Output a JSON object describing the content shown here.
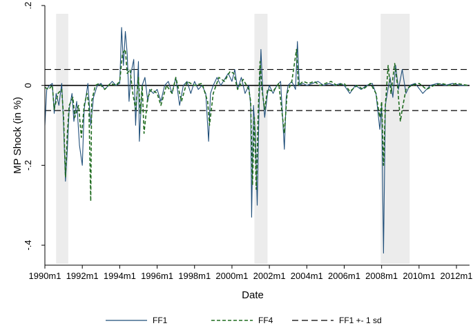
{
  "chart_data": {
    "type": "line",
    "xlabel": "Date",
    "ylabel": "MP Shock (in %)",
    "xlim": [
      1990.0,
      2012.7
    ],
    "ylim": [
      -0.45,
      0.2
    ],
    "x_ticks": [
      {
        "x": 1990,
        "label": "1990m1"
      },
      {
        "x": 1992,
        "label": "1992m1"
      },
      {
        "x": 1994,
        "label": "1994m1"
      },
      {
        "x": 1996,
        "label": "1996m1"
      },
      {
        "x": 1998,
        "label": "1998m1"
      },
      {
        "x": 2000,
        "label": "2000m1"
      },
      {
        "x": 2002,
        "label": "2002m1"
      },
      {
        "x": 2004,
        "label": "2004m1"
      },
      {
        "x": 2006,
        "label": "2006m1"
      },
      {
        "x": 2008,
        "label": "2008m1"
      },
      {
        "x": 2010,
        "label": "2010m1"
      },
      {
        "x": 2012,
        "label": "2012m1"
      }
    ],
    "y_ticks": [
      {
        "y": 0.2,
        "label": ".2"
      },
      {
        "y": 0,
        "label": "0"
      },
      {
        "y": -0.2,
        "label": "-.2"
      },
      {
        "y": -0.4,
        "label": "-.4"
      }
    ],
    "recessions": [
      [
        1990.6,
        1991.25
      ],
      [
        2001.2,
        2001.9
      ],
      [
        2007.95,
        2009.5
      ]
    ],
    "sd_bands": [
      0.04,
      -0.063
    ],
    "grid": false,
    "legend_position": "bottom",
    "series": [
      {
        "name": "FF1",
        "color": "#1f4e79",
        "dash": "solid",
        "points": [
          [
            1990.0,
            -0.1
          ],
          [
            1990.1,
            -0.01
          ],
          [
            1990.25,
            0.0
          ],
          [
            1990.4,
            0.005
          ],
          [
            1990.5,
            -0.07
          ],
          [
            1990.6,
            -0.02
          ],
          [
            1990.75,
            -0.05
          ],
          [
            1990.9,
            0.005
          ],
          [
            1991.0,
            -0.1
          ],
          [
            1991.1,
            -0.24
          ],
          [
            1991.2,
            -0.16
          ],
          [
            1991.3,
            -0.06
          ],
          [
            1991.45,
            -0.02
          ],
          [
            1991.55,
            -0.09
          ],
          [
            1991.7,
            -0.04
          ],
          [
            1991.85,
            -0.15
          ],
          [
            1992.0,
            -0.2
          ],
          [
            1992.1,
            -0.06
          ],
          [
            1992.3,
            0.005
          ],
          [
            1992.45,
            -0.1
          ],
          [
            1992.6,
            -0.03
          ],
          [
            1992.8,
            0.0
          ],
          [
            1993.0,
            0.005
          ],
          [
            1993.2,
            -0.01
          ],
          [
            1993.4,
            0.0
          ],
          [
            1993.6,
            0.01
          ],
          [
            1993.8,
            0.0
          ],
          [
            1994.0,
            0.005
          ],
          [
            1994.1,
            0.145
          ],
          [
            1994.2,
            0.05
          ],
          [
            1994.3,
            0.135
          ],
          [
            1994.4,
            0.08
          ],
          [
            1994.5,
            -0.04
          ],
          [
            1994.6,
            0.03
          ],
          [
            1994.75,
            0.065
          ],
          [
            1994.85,
            -0.1
          ],
          [
            1995.0,
            0.06
          ],
          [
            1995.05,
            -0.14
          ],
          [
            1995.2,
            0.0
          ],
          [
            1995.35,
            0.02
          ],
          [
            1995.5,
            -0.04
          ],
          [
            1995.6,
            -0.01
          ],
          [
            1995.8,
            -0.02
          ],
          [
            1996.0,
            -0.01
          ],
          [
            1996.2,
            -0.04
          ],
          [
            1996.4,
            0.0
          ],
          [
            1996.6,
            0.01
          ],
          [
            1996.8,
            -0.02
          ],
          [
            1997.0,
            0.02
          ],
          [
            1997.2,
            -0.05
          ],
          [
            1997.4,
            0.0
          ],
          [
            1997.6,
            0.01
          ],
          [
            1997.8,
            -0.02
          ],
          [
            1998.0,
            0.01
          ],
          [
            1998.2,
            -0.01
          ],
          [
            1998.4,
            0.0
          ],
          [
            1998.6,
            -0.02
          ],
          [
            1998.75,
            -0.14
          ],
          [
            1998.85,
            -0.02
          ],
          [
            1999.0,
            0.0
          ],
          [
            1999.2,
            0.02
          ],
          [
            1999.4,
            0.0
          ],
          [
            1999.6,
            0.015
          ],
          [
            1999.8,
            0.03
          ],
          [
            2000.0,
            0.01
          ],
          [
            2000.15,
            0.04
          ],
          [
            2000.3,
            -0.01
          ],
          [
            2000.5,
            0.02
          ],
          [
            2000.7,
            -0.02
          ],
          [
            2000.9,
            0.0
          ],
          [
            2001.0,
            -0.05
          ],
          [
            2001.05,
            -0.33
          ],
          [
            2001.15,
            -0.05
          ],
          [
            2001.25,
            -0.12
          ],
          [
            2001.35,
            -0.3
          ],
          [
            2001.45,
            -0.05
          ],
          [
            2001.55,
            0.09
          ],
          [
            2001.65,
            -0.02
          ],
          [
            2001.75,
            -0.08
          ],
          [
            2001.9,
            -0.02
          ],
          [
            2002.0,
            0.0
          ],
          [
            2002.2,
            -0.02
          ],
          [
            2002.4,
            0.0
          ],
          [
            2002.6,
            0.01
          ],
          [
            2002.8,
            -0.16
          ],
          [
            2002.9,
            -0.03
          ],
          [
            2003.0,
            0.0
          ],
          [
            2003.2,
            0.01
          ],
          [
            2003.4,
            -0.01
          ],
          [
            2003.5,
            0.11
          ],
          [
            2003.6,
            0.0
          ],
          [
            2003.8,
            0.005
          ],
          [
            2004.0,
            0.0
          ],
          [
            2004.3,
            0.005
          ],
          [
            2004.6,
            0.01
          ],
          [
            2004.9,
            0.0
          ],
          [
            2005.2,
            0.005
          ],
          [
            2005.5,
            0.0
          ],
          [
            2005.8,
            0.005
          ],
          [
            2006.0,
            0.0
          ],
          [
            2006.3,
            -0.02
          ],
          [
            2006.6,
            0.0
          ],
          [
            2006.9,
            -0.01
          ],
          [
            2007.2,
            0.0
          ],
          [
            2007.5,
            0.005
          ],
          [
            2007.7,
            -0.02
          ],
          [
            2007.9,
            -0.11
          ],
          [
            2008.0,
            -0.05
          ],
          [
            2008.1,
            -0.42
          ],
          [
            2008.2,
            -0.05
          ],
          [
            2008.3,
            -0.02
          ],
          [
            2008.45,
            0.02
          ],
          [
            2008.6,
            -0.03
          ],
          [
            2008.75,
            0.05
          ],
          [
            2008.9,
            -0.01
          ],
          [
            2009.1,
            0.04
          ],
          [
            2009.3,
            -0.02
          ],
          [
            2009.5,
            0.0
          ],
          [
            2009.8,
            0.005
          ],
          [
            2010.2,
            -0.02
          ],
          [
            2010.6,
            0.0
          ],
          [
            2011.0,
            0.005
          ],
          [
            2011.4,
            0.0
          ],
          [
            2011.8,
            0.005
          ],
          [
            2012.2,
            0.0
          ],
          [
            2012.6,
            0.0
          ]
        ]
      },
      {
        "name": "FF4",
        "color": "#1e6b1e",
        "dash": "dashed",
        "points": [
          [
            1990.0,
            -0.005
          ],
          [
            1990.2,
            -0.01
          ],
          [
            1990.4,
            0.0
          ],
          [
            1990.5,
            -0.06
          ],
          [
            1990.7,
            -0.02
          ],
          [
            1990.9,
            -0.01
          ],
          [
            1991.0,
            -0.08
          ],
          [
            1991.1,
            -0.23
          ],
          [
            1991.2,
            -0.12
          ],
          [
            1991.3,
            -0.05
          ],
          [
            1991.5,
            -0.03
          ],
          [
            1991.6,
            -0.08
          ],
          [
            1991.8,
            -0.05
          ],
          [
            1991.95,
            -0.13
          ],
          [
            1992.1,
            -0.05
          ],
          [
            1992.25,
            -0.02
          ],
          [
            1992.35,
            -0.05
          ],
          [
            1992.45,
            -0.29
          ],
          [
            1992.5,
            -0.04
          ],
          [
            1992.7,
            0.0
          ],
          [
            1992.9,
            0.005
          ],
          [
            1993.2,
            -0.01
          ],
          [
            1993.5,
            0.005
          ],
          [
            1993.8,
            0.0
          ],
          [
            1994.0,
            0.01
          ],
          [
            1994.15,
            0.08
          ],
          [
            1994.3,
            0.09
          ],
          [
            1994.4,
            0.03
          ],
          [
            1994.55,
            0.04
          ],
          [
            1994.7,
            -0.02
          ],
          [
            1994.85,
            -0.06
          ],
          [
            1995.0,
            0.02
          ],
          [
            1995.1,
            -0.07
          ],
          [
            1995.2,
            0.0
          ],
          [
            1995.3,
            -0.12
          ],
          [
            1995.5,
            -0.03
          ],
          [
            1995.7,
            -0.01
          ],
          [
            1996.0,
            -0.02
          ],
          [
            1996.2,
            -0.05
          ],
          [
            1996.5,
            0.0
          ],
          [
            1996.8,
            -0.02
          ],
          [
            1997.0,
            0.02
          ],
          [
            1997.3,
            -0.04
          ],
          [
            1997.6,
            0.01
          ],
          [
            1998.0,
            0.0
          ],
          [
            1998.4,
            0.005
          ],
          [
            1998.7,
            -0.04
          ],
          [
            1998.8,
            -0.1
          ],
          [
            1999.0,
            -0.02
          ],
          [
            1999.3,
            0.02
          ],
          [
            1999.6,
            0.01
          ],
          [
            1999.9,
            0.035
          ],
          [
            2000.1,
            0.03
          ],
          [
            2000.3,
            -0.01
          ],
          [
            2000.6,
            0.015
          ],
          [
            2000.9,
            -0.01
          ],
          [
            2001.0,
            -0.04
          ],
          [
            2001.1,
            -0.25
          ],
          [
            2001.2,
            -0.08
          ],
          [
            2001.3,
            -0.26
          ],
          [
            2001.4,
            -0.07
          ],
          [
            2001.5,
            0.06
          ],
          [
            2001.6,
            -0.01
          ],
          [
            2001.75,
            -0.06
          ],
          [
            2001.9,
            -0.01
          ],
          [
            2002.2,
            -0.015
          ],
          [
            2002.5,
            0.005
          ],
          [
            2002.8,
            -0.12
          ],
          [
            2002.95,
            -0.02
          ],
          [
            2003.2,
            0.01
          ],
          [
            2003.45,
            0.09
          ],
          [
            2003.55,
            0.0
          ],
          [
            2003.8,
            0.01
          ],
          [
            2004.1,
            0.005
          ],
          [
            2004.4,
            0.01
          ],
          [
            2004.7,
            0.0
          ],
          [
            2005.0,
            0.005
          ],
          [
            2005.3,
            0.01
          ],
          [
            2005.6,
            0.0
          ],
          [
            2006.0,
            0.005
          ],
          [
            2006.3,
            -0.015
          ],
          [
            2006.7,
            0.0
          ],
          [
            2007.0,
            -0.01
          ],
          [
            2007.4,
            0.005
          ],
          [
            2007.7,
            -0.02
          ],
          [
            2007.9,
            -0.08
          ],
          [
            2008.0,
            -0.04
          ],
          [
            2008.1,
            -0.2
          ],
          [
            2008.2,
            -0.05
          ],
          [
            2008.35,
            0.05
          ],
          [
            2008.5,
            -0.02
          ],
          [
            2008.7,
            0.055
          ],
          [
            2008.85,
            0.0
          ],
          [
            2009.0,
            -0.09
          ],
          [
            2009.1,
            -0.06
          ],
          [
            2009.3,
            -0.01
          ],
          [
            2009.6,
            0.0
          ],
          [
            2010.0,
            0.005
          ],
          [
            2010.4,
            -0.01
          ],
          [
            2010.8,
            0.0
          ],
          [
            2011.2,
            0.005
          ],
          [
            2011.6,
            0.0
          ],
          [
            2012.0,
            0.005
          ],
          [
            2012.6,
            0.0
          ]
        ]
      },
      {
        "name": "FF1 +- 1 sd",
        "color": "#000000",
        "dash": "long-dash"
      }
    ]
  }
}
